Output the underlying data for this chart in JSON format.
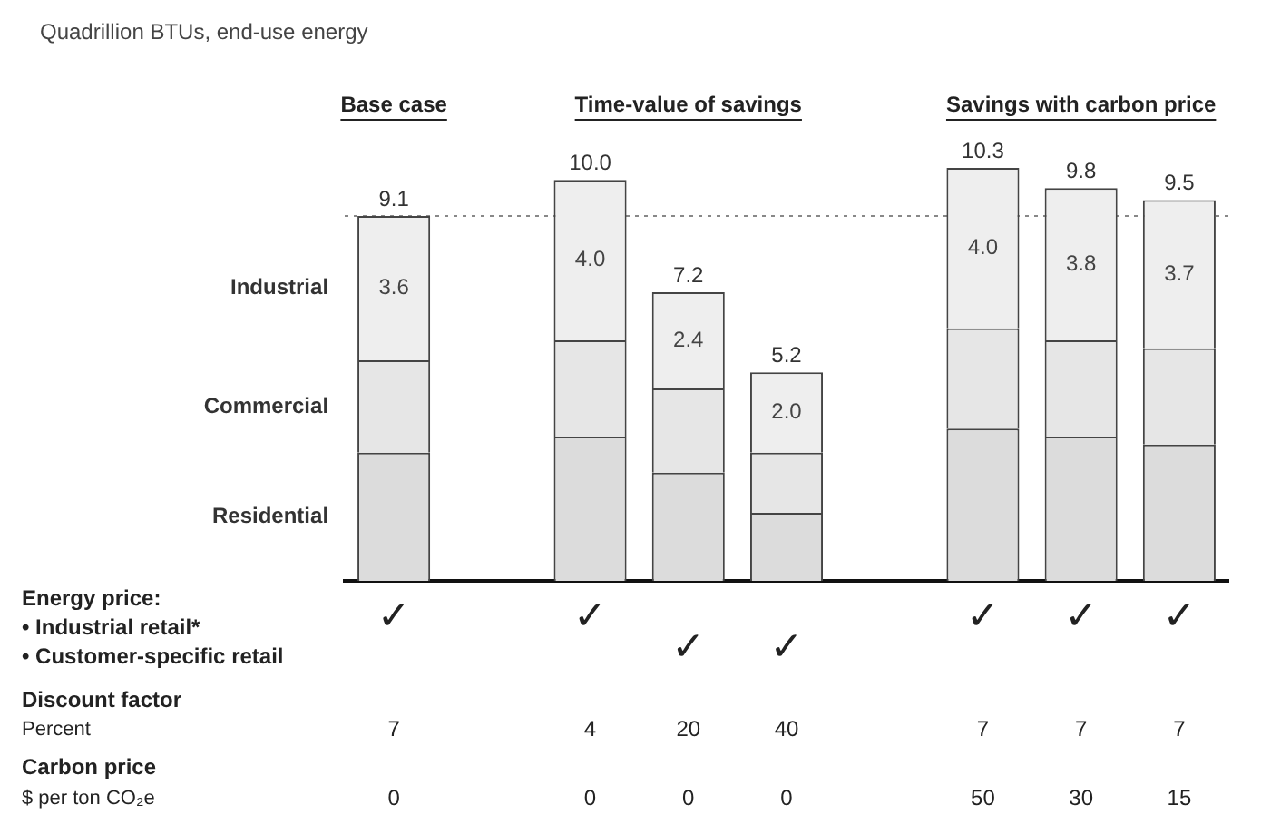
{
  "chart_data": {
    "type": "bar",
    "title": "Quadrillion BTUs, end-use energy",
    "stacked": true,
    "tick_labels": false,
    "categories": [
      null,
      null,
      null,
      null,
      null,
      null,
      null
    ],
    "series": [
      {
        "name": "Residential",
        "color": "#dcdcdc",
        "values": [
          3.2,
          3.6,
          2.7,
          1.7,
          3.8,
          3.6,
          3.4
        ]
      },
      {
        "name": "Commercial",
        "color": "#e6e6e6",
        "values": [
          2.3,
          2.4,
          2.1,
          1.5,
          2.5,
          2.4,
          2.4
        ]
      },
      {
        "name": "Industrial",
        "color": "#eeeeee",
        "values": [
          3.6,
          4.0,
          2.4,
          2.0,
          4.0,
          3.8,
          3.7
        ],
        "value_labels": [
          "3.6",
          "4.0",
          "2.4",
          "2.0",
          "4.0",
          "3.8",
          "3.7"
        ]
      }
    ],
    "totals": [
      "9.1",
      "10.0",
      "7.2",
      "5.2",
      "10.3",
      "9.8",
      "9.5"
    ],
    "ref_lines": [
      {
        "axis": "y",
        "value": 9.1,
        "line_style": "dotted",
        "color": "#888888"
      }
    ],
    "annotations": [
      "Base case",
      "Time-value of savings",
      "Savings with carbon price",
      "Energy price:",
      "• Industrial retail*",
      "• Customer-specific retail",
      "Discount factor",
      "Percent",
      "Carbon price",
      "$ per ton CO₂e",
      "✓",
      "✓",
      "✓",
      "✓",
      "✓",
      "✓",
      "✓",
      "7",
      "4",
      "20",
      "40",
      "7",
      "7",
      "7",
      "0",
      "0",
      "0",
      "0",
      "50",
      "30",
      "15"
    ]
  }
}
